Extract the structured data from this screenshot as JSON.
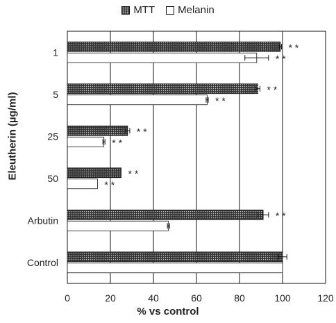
{
  "chart_data": {
    "type": "bar",
    "orientation": "horizontal",
    "categories": [
      "1",
      "5",
      "25",
      "50",
      "Arbutin",
      "Control"
    ],
    "series": [
      {
        "name": "MTT",
        "values": [
          99,
          88.5,
          28,
          25,
          91,
          100
        ],
        "errors": [
          0.5,
          1,
          1,
          0,
          2.5,
          2
        ]
      },
      {
        "name": "Melanin",
        "values": [
          88,
          65,
          17,
          14,
          47,
          100
        ],
        "errors": [
          5.5,
          0.5,
          0.5,
          0,
          0.5,
          0
        ]
      }
    ],
    "annotations": [
      "* *",
      "* *",
      "* *",
      "* *",
      "* *",
      "* *",
      "* *",
      "* *",
      "* *",
      ""
    ],
    "xlabel": "% vs control",
    "ylabel": "Eleutherin (µg/ml)",
    "xlim": [
      0,
      120
    ],
    "xticks": [
      "0",
      "20",
      "40",
      "60",
      "80",
      "100",
      "120"
    ],
    "grid": "vertical",
    "legend_position": "top"
  },
  "colors": {
    "mtt_fill": "#333333",
    "mtt_dots": "#bbbbbb",
    "melanin_fill": "#ffffff",
    "axis": "#111111"
  }
}
